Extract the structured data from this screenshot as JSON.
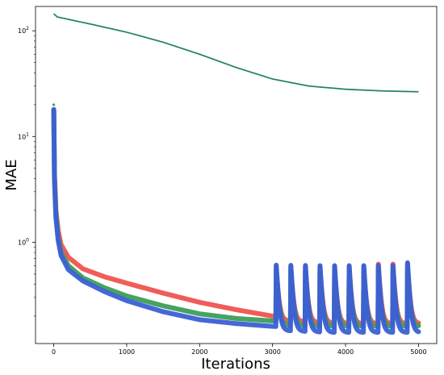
{
  "chart_data": {
    "type": "line",
    "title": "",
    "xlabel": "Iterations",
    "ylabel": "MAE",
    "xlim": [
      -250,
      5250
    ],
    "ylim": [
      0.11,
      170
    ],
    "yscale": "log",
    "grid": false,
    "x_ticks": [
      {
        "value": 0,
        "label": "0"
      },
      {
        "value": 1000,
        "label": "1000"
      },
      {
        "value": 2000,
        "label": "2000"
      },
      {
        "value": 3000,
        "label": "3000"
      },
      {
        "value": 4000,
        "label": "4000"
      },
      {
        "value": 5000,
        "label": "5000"
      }
    ],
    "y_ticks": [
      {
        "value": 100,
        "label": "10",
        "exp": "2"
      },
      {
        "value": 10,
        "label": "10",
        "exp": "1"
      },
      {
        "value": 1,
        "label": "10",
        "exp": "0"
      }
    ],
    "series": [
      {
        "color": "#2a6f97",
        "accent": "#2ca02c",
        "style": "line",
        "x": [
          0,
          50,
          100,
          300,
          500,
          1000,
          1500,
          2000,
          2500,
          3000,
          3500,
          4000,
          4500,
          5000
        ],
        "y": [
          145,
          135,
          133,
          124,
          116,
          97,
          78,
          60,
          45,
          35,
          30,
          28,
          27,
          26.5
        ]
      },
      {
        "color": "#ef5350",
        "marker": "x",
        "style": "thick",
        "x": [
          0,
          10,
          30,
          60,
          100,
          200,
          400,
          700,
          1000,
          1500,
          2000,
          2500,
          3000,
          3500,
          4000,
          4500,
          5000
        ],
        "y": [
          18,
          4.5,
          2.0,
          1.3,
          0.95,
          0.72,
          0.56,
          0.47,
          0.41,
          0.33,
          0.27,
          0.23,
          0.2,
          0.19,
          0.185,
          0.18,
          0.178
        ],
        "spikes": {
          "start": 3050,
          "period": 200,
          "count": 10,
          "peaks": [
            0.58,
            0.58,
            0.58,
            0.58,
            0.58,
            0.58,
            0.58,
            0.62,
            0.62,
            0.62
          ],
          "base": 0.17
        }
      },
      {
        "color": "#3c9e58",
        "marker": "o",
        "style": "thick",
        "x": [
          0,
          10,
          30,
          60,
          100,
          200,
          400,
          700,
          1000,
          1500,
          2000,
          2500,
          3000,
          3500,
          4000,
          4500,
          5000
        ],
        "y": [
          18,
          4.0,
          1.8,
          1.1,
          0.8,
          0.6,
          0.46,
          0.37,
          0.31,
          0.25,
          0.21,
          0.19,
          0.18,
          0.175,
          0.17,
          0.168,
          0.165
        ],
        "spikes": {
          "start": 3050,
          "period": 200,
          "count": 10,
          "peaks": [
            0.55,
            0.55,
            0.55,
            0.55,
            0.55,
            0.55,
            0.55,
            0.55,
            0.55,
            0.55
          ],
          "base": 0.16
        }
      },
      {
        "color": "#3b5fd6",
        "marker": "^",
        "style": "thick",
        "x": [
          0,
          10,
          30,
          60,
          100,
          200,
          400,
          700,
          1000,
          1500,
          2000,
          2500,
          3000,
          3500,
          4000,
          4500,
          5000
        ],
        "y": [
          18,
          3.8,
          1.7,
          1.05,
          0.75,
          0.55,
          0.43,
          0.34,
          0.28,
          0.22,
          0.185,
          0.17,
          0.16,
          0.155,
          0.15,
          0.148,
          0.145
        ],
        "spikes": {
          "start": 3050,
          "period": 200,
          "count": 10,
          "peaks": [
            0.6,
            0.6,
            0.6,
            0.6,
            0.6,
            0.6,
            0.6,
            0.6,
            0.6,
            0.64
          ],
          "base": 0.14
        }
      }
    ]
  }
}
